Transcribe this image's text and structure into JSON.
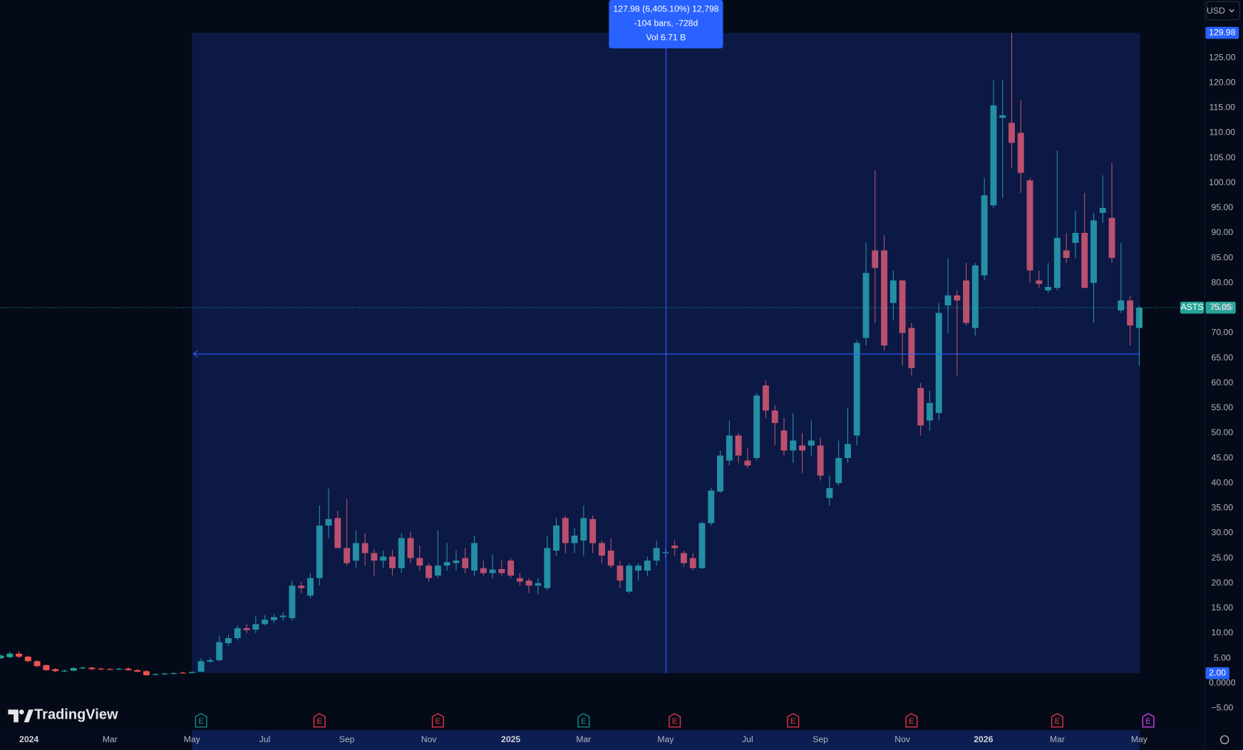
{
  "chart_data": {
    "type": "candlestick",
    "symbol": "ASTS",
    "currency": "USD",
    "brand": "TradingView",
    "up_color": "#26a69a",
    "down_color": "#ef5350",
    "open": [
      5,
      5.2,
      5.9,
      5.3,
      4.4,
      3.6,
      2.8,
      2.4,
      2.5,
      3.0,
      3.1,
      2.9,
      2.8,
      2.8,
      2.9,
      2.6,
      2.4,
      1.7,
      1.8,
      1.9,
      2.1,
      2.0,
      2.3,
      4.3,
      4.6,
      8.0,
      9.0,
      11.0,
      10.7,
      11.8,
      12.6,
      13.2,
      13.0,
      19.5,
      17.5,
      21,
      31.5,
      33,
      27,
      24.5,
      28,
      26,
      24.5,
      25.3,
      23,
      29,
      25,
      23.5,
      21.5,
      23.5,
      24,
      25,
      22.5,
      23,
      22,
      22.8,
      24.5,
      21,
      20.5,
      19.5,
      19,
      26.5,
      33,
      28,
      28.5,
      32.8,
      28,
      26.5,
      23.5,
      18.3,
      22.5,
      22.5,
      24.5,
      26,
      27.5,
      26,
      25,
      23,
      32,
      38.3,
      44.5,
      49.5,
      44.5,
      45,
      59.5,
      54.5,
      50.5,
      46.5,
      47.5,
      47.5,
      47.5,
      37,
      40,
      45,
      49.5,
      69,
      86.5,
      86.5,
      76,
      80.5,
      71,
      59,
      52.5,
      54,
      75.5,
      77.5,
      80.5,
      71,
      81.5,
      95.5,
      113,
      112,
      110,
      100.5,
      80.5,
      78.5,
      79,
      86.5,
      88,
      90,
      80,
      94,
      93,
      74.5,
      76.5,
      71
    ],
    "high": [
      5.8,
      6.3,
      6.4,
      5.5,
      4.6,
      3.8,
      3.0,
      2.7,
      3.2,
      3.3,
      3.3,
      3.1,
      3.0,
      3.0,
      3.2,
      2.8,
      2.6,
      2.0,
      2.1,
      2.2,
      2.3,
      2.4,
      5.0,
      5.1,
      9.5,
      9.7,
      11.5,
      11.8,
      13.5,
      13.6,
      13.8,
      14.2,
      20.5,
      20.3,
      22.0,
      35.5,
      38.9,
      34.5,
      36.8,
      30.5,
      30,
      26.8,
      26.5,
      26.6,
      30,
      30.3,
      27.5,
      24,
      30.5,
      28,
      26.5,
      27,
      29.5,
      24.5,
      25.8,
      24.5,
      25,
      22,
      21,
      21,
      29.5,
      33,
      33.5,
      31,
      35.5,
      33.5,
      28.5,
      29,
      24.5,
      24,
      24,
      25.3,
      28.5,
      27,
      28.5,
      26.5,
      26,
      32.3,
      39,
      46.5,
      52.5,
      50,
      47,
      58,
      60.5,
      55.5,
      53,
      54,
      50,
      52.5,
      49,
      41.5,
      48.5,
      55,
      68.5,
      88,
      102.5,
      89.5,
      82.5,
      80.5,
      72,
      60,
      58.5,
      76,
      85,
      78.5,
      84,
      84,
      101,
      120.5,
      120.5,
      129.98,
      116.5,
      101,
      82.5,
      84,
      106.5,
      90,
      94.5,
      98,
      94,
      101.5,
      104,
      88,
      77.5,
      75.5
    ],
    "low": [
      4.8,
      5.0,
      5.0,
      4.2,
      3.2,
      2.5,
      2.2,
      2.2,
      2.4,
      2.8,
      2.6,
      2.6,
      2.6,
      2.6,
      2.5,
      2.2,
      1.5,
      1.6,
      1.7,
      1.8,
      1.9,
      2.0,
      2.2,
      4.1,
      4.4,
      7.5,
      8.5,
      10,
      10,
      11.5,
      12.0,
      12.5,
      12.5,
      18.0,
      17.0,
      19.5,
      29.0,
      27,
      23.5,
      23,
      23.5,
      21.5,
      23,
      21.5,
      22,
      24,
      22.5,
      20.3,
      21,
      22.5,
      22.5,
      22,
      21.5,
      21.5,
      21,
      21.5,
      21,
      19.5,
      18,
      17.8,
      18.5,
      25.5,
      26,
      26,
      25.5,
      26,
      24,
      23,
      19,
      18,
      20.5,
      21.5,
      23.5,
      25,
      25.5,
      23.3,
      22.5,
      22.8,
      31.5,
      38,
      43.5,
      44,
      43,
      44.5,
      53,
      47.5,
      45.5,
      44,
      42,
      45.5,
      40.5,
      35.5,
      39.5,
      44,
      47.5,
      67.5,
      72,
      66.5,
      72.5,
      63.5,
      61.5,
      49.5,
      50.5,
      52.5,
      70,
      61.5,
      71.5,
      69.5,
      80.5,
      95,
      97,
      103,
      98,
      80,
      79,
      78,
      78.5,
      84,
      85,
      79,
      72,
      92,
      84,
      74,
      67.5,
      63.5
    ],
    "close": [
      5.5,
      5.9,
      5.3,
      4.4,
      3.4,
      2.6,
      2.4,
      2.5,
      3.0,
      3.1,
      2.8,
      2.8,
      2.7,
      2.9,
      2.6,
      2.3,
      1.6,
      1.8,
      1.9,
      2.0,
      1.98,
      2.2,
      4.4,
      4.6,
      8.2,
      9.0,
      11.0,
      10.6,
      11.8,
      12.7,
      13.2,
      13.5,
      19.5,
      19.0,
      21.0,
      31.5,
      32.8,
      27,
      24,
      28,
      26,
      24.5,
      25.3,
      23,
      29,
      25,
      23.5,
      21,
      23.5,
      24.2,
      24.5,
      23,
      28,
      22,
      22.7,
      22,
      21.5,
      20.3,
      19.5,
      20,
      27,
      31.5,
      28,
      29.5,
      33,
      28,
      25.5,
      23.5,
      20.5,
      23.5,
      23.5,
      24.5,
      27,
      26.2,
      27,
      24,
      23,
      32,
      38.5,
      45.5,
      49.5,
      45.5,
      43.5,
      57.5,
      54.5,
      52,
      46.5,
      48.5,
      46.5,
      48.5,
      41.5,
      39,
      45,
      47.8,
      68,
      82,
      83,
      67.5,
      80.5,
      70,
      63,
      51.5,
      56,
      74,
      77.5,
      76.5,
      72,
      83.5,
      97.5,
      115.5,
      113.5,
      108,
      102,
      82.5,
      79.8,
      79.2,
      89,
      85,
      90,
      79,
      92.5,
      95,
      85,
      76.5,
      71.5,
      75.05
    ],
    "last_price": 75.05,
    "range_high": 129.98,
    "range_low": {
      "value": 2,
      "label": "2.00"
    },
    "measure": [
      "127.98 (6,405.10%) 12,798",
      "-104 bars, -728d",
      "Vol 6.71 B"
    ],
    "ylim": [
      -9.4,
      136.55
    ],
    "yticks": [
      {
        "value": 125,
        "label": "125.00"
      },
      {
        "value": 120,
        "label": "120.00"
      },
      {
        "value": 115,
        "label": "115.00"
      },
      {
        "value": 110,
        "label": "110.00"
      },
      {
        "value": 105,
        "label": "105.00"
      },
      {
        "value": 100,
        "label": "100.00"
      },
      {
        "value": 95,
        "label": "95.00"
      },
      {
        "value": 90,
        "label": "90.00"
      },
      {
        "value": 85,
        "label": "85.00"
      },
      {
        "value": 80,
        "label": "80.00"
      },
      {
        "value": 75,
        "label": "75.00"
      },
      {
        "value": 70,
        "label": "70.00"
      },
      {
        "value": 65,
        "label": "65.00"
      },
      {
        "value": 60,
        "label": "60.00"
      },
      {
        "value": 55,
        "label": "55.00"
      },
      {
        "value": 50,
        "label": "50.00"
      },
      {
        "value": 45,
        "label": "45.00"
      },
      {
        "value": 40,
        "label": "40.00"
      },
      {
        "value": 35,
        "label": "35.00"
      },
      {
        "value": 30,
        "label": "30.00"
      },
      {
        "value": 25,
        "label": "25.00"
      },
      {
        "value": 20,
        "label": "20.00"
      },
      {
        "value": 15,
        "label": "15.00"
      },
      {
        "value": 10,
        "label": "10.00"
      },
      {
        "value": 5,
        "label": "5.00"
      },
      {
        "value": 0,
        "label": "0.0000"
      },
      {
        "value": -5,
        "label": "−5.00"
      }
    ],
    "xlim": [
      -0.06,
      132.2
    ],
    "xticks": [
      {
        "value": 3.1,
        "label": "2024"
      },
      {
        "value": 12,
        "label": "Mar"
      },
      {
        "value": 21,
        "label": "May"
      },
      {
        "value": 29,
        "label": "Jul"
      },
      {
        "value": 38,
        "label": "Sep"
      },
      {
        "value": 47,
        "label": "Nov"
      },
      {
        "value": 56,
        "label": "2025"
      },
      {
        "value": 64,
        "label": "Mar"
      },
      {
        "value": 73,
        "label": "May"
      },
      {
        "value": 82,
        "label": "Jul"
      },
      {
        "value": 90,
        "label": "Sep"
      },
      {
        "value": 99,
        "label": "Nov"
      },
      {
        "value": 107.9,
        "label": "2026"
      },
      {
        "value": 116,
        "label": "Mar"
      },
      {
        "value": 125,
        "label": "May"
      }
    ],
    "events": [
      {
        "label": "E",
        "color": "#089981"
      },
      {
        "label": "E",
        "color": "#f23645"
      },
      {
        "label": "E",
        "color": "#f23645"
      },
      {
        "label": "E",
        "color": "#089981"
      },
      {
        "label": "E",
        "color": "#f23645"
      },
      {
        "label": "E",
        "color": "#f23645"
      },
      {
        "label": "E",
        "color": "#f23645"
      },
      {
        "label": "E",
        "color": "#f23645"
      },
      {
        "label": "E",
        "color": "#e040fb"
      }
    ]
  }
}
